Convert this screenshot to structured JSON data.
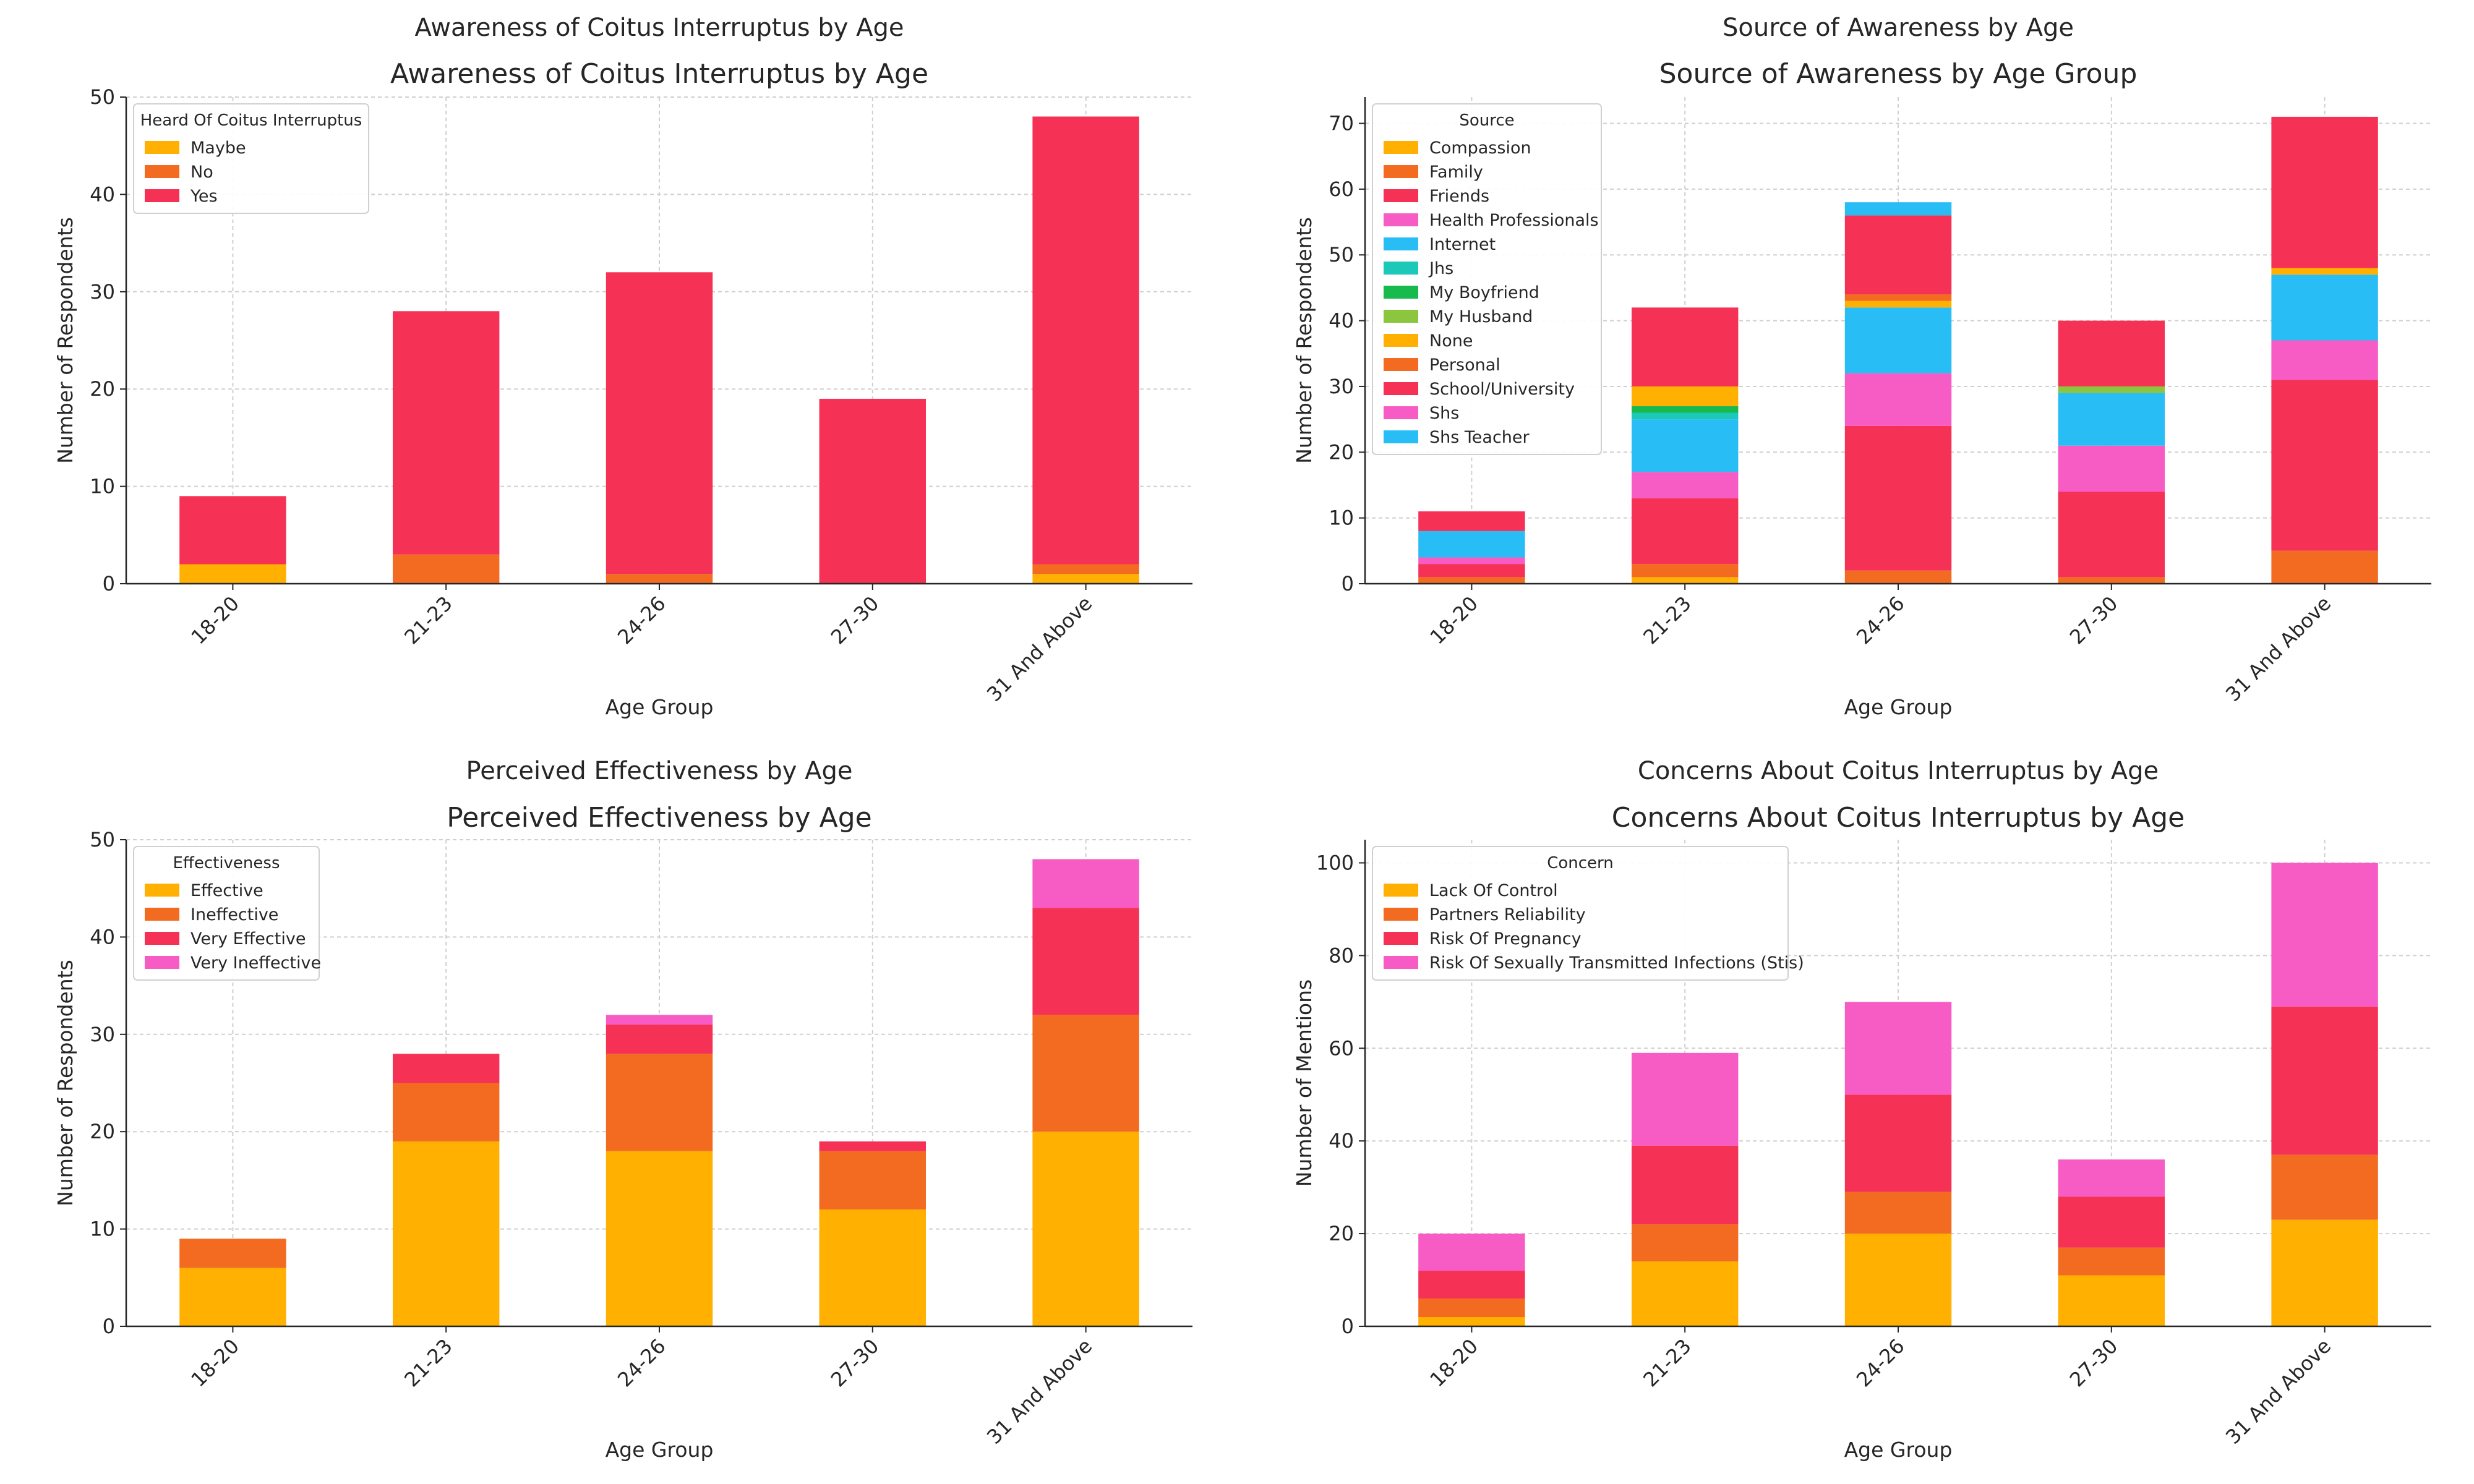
{
  "chart_data": [
    {
      "type": "bar",
      "stacked": true,
      "figure_title": "Awareness of Coitus Interruptus by Age",
      "title": "Awareness of Coitus Interruptus by Age",
      "xlabel": "Age Group",
      "ylabel": "Number of Respondents",
      "categories": [
        "18-20",
        "21-23",
        "24-26",
        "27-30",
        "31 And Above"
      ],
      "ylim": [
        0,
        50
      ],
      "yticks": [
        0,
        10,
        20,
        30,
        40,
        50
      ],
      "grid": true,
      "legend_title": "Heard Of Coitus Interruptus",
      "legend_position": "upper-left",
      "series": [
        {
          "name": "Maybe",
          "color": "#FFB000",
          "values": [
            2,
            0,
            0,
            0,
            1
          ]
        },
        {
          "name": "No",
          "color": "#F26B21",
          "values": [
            0,
            3,
            1,
            0,
            1
          ]
        },
        {
          "name": "Yes",
          "color": "#F53155",
          "values": [
            7,
            25,
            31,
            19,
            46
          ]
        }
      ]
    },
    {
      "type": "bar",
      "stacked": true,
      "figure_title": "Source of Awareness by Age",
      "title": "Source of Awareness by Age Group",
      "xlabel": "Age Group",
      "ylabel": "Number of Respondents",
      "categories": [
        "18-20",
        "21-23",
        "24-26",
        "27-30",
        "31 And Above"
      ],
      "ylim": [
        0,
        74
      ],
      "yticks": [
        0,
        10,
        20,
        30,
        40,
        50,
        60,
        70
      ],
      "grid": true,
      "legend_title": "Source",
      "legend_position": "upper-left",
      "series": [
        {
          "name": "Compassion",
          "color": "#FFB000",
          "values": [
            0,
            1,
            0,
            0,
            0
          ]
        },
        {
          "name": "Family",
          "color": "#F26B21",
          "values": [
            1,
            2,
            2,
            1,
            5
          ]
        },
        {
          "name": "Friends",
          "color": "#F53155",
          "values": [
            2,
            10,
            22,
            13,
            26
          ]
        },
        {
          "name": "Health Professionals",
          "color": "#F75BC4",
          "values": [
            1,
            4,
            8,
            7,
            6
          ]
        },
        {
          "name": "Internet",
          "color": "#29BDF5",
          "values": [
            4,
            8,
            10,
            8,
            10
          ]
        },
        {
          "name": "Jhs",
          "color": "#1CC8B8",
          "values": [
            0,
            1,
            0,
            0,
            0
          ]
        },
        {
          "name": "My Boyfriend",
          "color": "#18BA4E",
          "values": [
            0,
            1,
            0,
            0,
            0
          ]
        },
        {
          "name": "My Husband",
          "color": "#8CC63F",
          "values": [
            0,
            0,
            0,
            1,
            0
          ]
        },
        {
          "name": "None",
          "color": "#FFB000",
          "values": [
            0,
            3,
            1,
            0,
            1
          ]
        },
        {
          "name": "Personal",
          "color": "#F26B21",
          "values": [
            0,
            0,
            1,
            0,
            0
          ]
        },
        {
          "name": "School/University",
          "color": "#F53155",
          "values": [
            3,
            12,
            12,
            10,
            23
          ]
        },
        {
          "name": "Shs",
          "color": "#F75BC4",
          "values": [
            0,
            0,
            0,
            0,
            0
          ]
        },
        {
          "name": "Shs Teacher",
          "color": "#29BDF5",
          "values": [
            0,
            0,
            2,
            0,
            0
          ]
        }
      ]
    },
    {
      "type": "bar",
      "stacked": true,
      "figure_title": "Perceived Effectiveness by Age",
      "title": "Perceived Effectiveness by Age",
      "xlabel": "Age Group",
      "ylabel": "Number of Respondents",
      "categories": [
        "18-20",
        "21-23",
        "24-26",
        "27-30",
        "31 And Above"
      ],
      "ylim": [
        0,
        50
      ],
      "yticks": [
        0,
        10,
        20,
        30,
        40,
        50
      ],
      "grid": true,
      "legend_title": "Effectiveness",
      "legend_position": "upper-left",
      "series": [
        {
          "name": "Effective",
          "color": "#FFB000",
          "values": [
            6,
            19,
            18,
            12,
            20
          ]
        },
        {
          "name": "Ineffective",
          "color": "#F26B21",
          "values": [
            3,
            6,
            10,
            6,
            12
          ]
        },
        {
          "name": "Very Effective",
          "color": "#F53155",
          "values": [
            0,
            3,
            3,
            1,
            11
          ]
        },
        {
          "name": "Very Ineffective",
          "color": "#F75BC4",
          "values": [
            0,
            0,
            1,
            0,
            5
          ]
        }
      ]
    },
    {
      "type": "bar",
      "stacked": true,
      "figure_title": "Concerns About Coitus Interruptus by Age",
      "title": "Concerns About Coitus Interruptus by Age",
      "xlabel": "Age Group",
      "ylabel": "Number of Mentions",
      "categories": [
        "18-20",
        "21-23",
        "24-26",
        "27-30",
        "31 And Above"
      ],
      "ylim": [
        0,
        105
      ],
      "yticks": [
        0,
        20,
        40,
        60,
        80,
        100
      ],
      "grid": true,
      "legend_title": "Concern",
      "legend_position": "upper-left",
      "series": [
        {
          "name": "Lack Of Control",
          "color": "#FFB000",
          "values": [
            2,
            14,
            20,
            11,
            23
          ]
        },
        {
          "name": "Partners Reliability",
          "color": "#F26B21",
          "values": [
            4,
            8,
            9,
            6,
            14
          ]
        },
        {
          "name": "Risk Of Pregnancy",
          "color": "#F53155",
          "values": [
            6,
            17,
            21,
            11,
            32
          ]
        },
        {
          "name": "Risk Of Sexually Transmitted Infections (Stis)",
          "color": "#F75BC4",
          "values": [
            8,
            20,
            20,
            8,
            31
          ]
        }
      ]
    }
  ]
}
